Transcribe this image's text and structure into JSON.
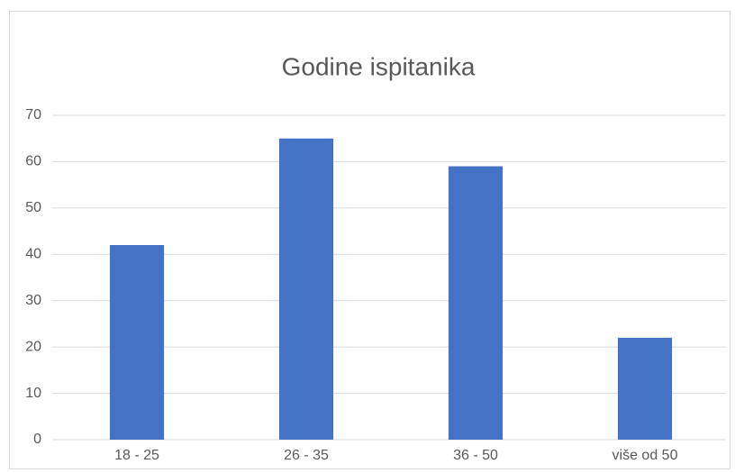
{
  "chart_data": {
    "type": "bar",
    "title": "Godine ispitanika",
    "categories": [
      "18 - 25",
      "26 - 35",
      "36 - 50",
      "više od 50"
    ],
    "values": [
      42,
      65,
      59,
      22
    ],
    "color": "#4472c4",
    "ylim": [
      0,
      70
    ],
    "yticks": [
      0,
      10,
      20,
      30,
      40,
      50,
      60,
      70
    ],
    "grid": true
  }
}
